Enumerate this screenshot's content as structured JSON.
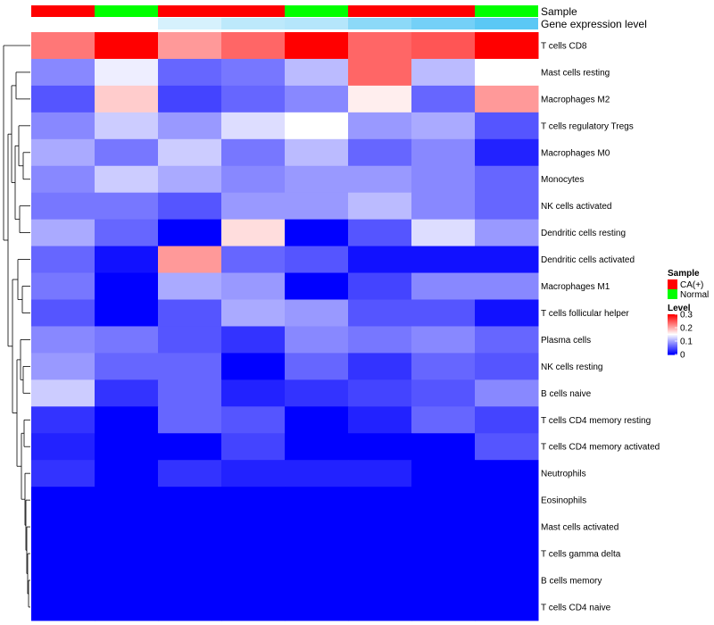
{
  "chart_data": {
    "type": "heatmap",
    "annotation_labels": [
      "Sample",
      "Gene expression level"
    ],
    "sample_annotation": [
      "CA(+)",
      "Normal",
      "CA(+)",
      "CA(+)",
      "Normal",
      "CA(+)",
      "CA(+)",
      "Normal"
    ],
    "gene_expression_annotation": [
      0.0,
      0.0,
      0.25,
      0.4,
      0.45,
      0.7,
      0.85,
      1.0
    ],
    "rows": [
      "T cells CD8",
      "Mast cells resting",
      "Macrophages M2",
      "T cells regulatory  Tregs",
      "Macrophages M0",
      "Monocytes",
      "NK cells activated",
      "Dendritic cells resting",
      "Dendritic cells activated",
      "Macrophages M1",
      "T cells follicular helper",
      "Plasma cells",
      "NK cells resting",
      "B cells naive",
      "T cells CD4 memory resting",
      "T cells CD4 memory activated",
      "Neutrophils",
      "Eosinophils",
      "Mast cells activated",
      "T cells gamma delta",
      "B cells memory",
      "T cells CD4 naive"
    ],
    "values": [
      [
        0.23,
        0.3,
        0.21,
        0.24,
        0.3,
        0.24,
        0.25,
        0.3
      ],
      [
        0.08,
        0.14,
        0.06,
        0.07,
        0.11,
        0.24,
        0.11,
        0.15
      ],
      [
        0.05,
        0.18,
        0.04,
        0.06,
        0.08,
        0.16,
        0.06,
        0.21
      ],
      [
        0.08,
        0.12,
        0.09,
        0.13,
        0.15,
        0.09,
        0.1,
        0.05
      ],
      [
        0.1,
        0.07,
        0.12,
        0.07,
        0.11,
        0.06,
        0.08,
        0.02
      ],
      [
        0.08,
        0.12,
        0.1,
        0.08,
        0.09,
        0.09,
        0.08,
        0.06
      ],
      [
        0.07,
        0.07,
        0.05,
        0.09,
        0.09,
        0.11,
        0.08,
        0.06
      ],
      [
        0.1,
        0.06,
        0.0,
        0.17,
        0.0,
        0.05,
        0.13,
        0.09
      ],
      [
        0.06,
        0.01,
        0.21,
        0.06,
        0.05,
        0.01,
        0.01,
        0.01
      ],
      [
        0.07,
        0.0,
        0.1,
        0.09,
        0.0,
        0.04,
        0.08,
        0.08
      ],
      [
        0.05,
        0.0,
        0.05,
        0.1,
        0.09,
        0.05,
        0.05,
        0.01
      ],
      [
        0.08,
        0.07,
        0.05,
        0.03,
        0.08,
        0.07,
        0.08,
        0.06
      ],
      [
        0.09,
        0.06,
        0.06,
        0.0,
        0.06,
        0.03,
        0.06,
        0.05
      ],
      [
        0.12,
        0.03,
        0.06,
        0.02,
        0.03,
        0.04,
        0.05,
        0.08
      ],
      [
        0.03,
        0.0,
        0.06,
        0.05,
        0.0,
        0.02,
        0.06,
        0.04
      ],
      [
        0.02,
        0.0,
        0.0,
        0.04,
        0.0,
        0.0,
        0.0,
        0.05
      ],
      [
        0.03,
        0.0,
        0.03,
        0.02,
        0.02,
        0.02,
        0.0,
        0.0
      ],
      [
        0.0,
        0.0,
        0.0,
        0.0,
        0.0,
        0.0,
        0.0,
        0.0
      ],
      [
        0.0,
        0.0,
        0.0,
        0.0,
        0.0,
        0.0,
        0.0,
        0.0
      ],
      [
        0.0,
        0.0,
        0.0,
        0.0,
        0.0,
        0.0,
        0.0,
        0.0
      ],
      [
        0.0,
        0.0,
        0.0,
        0.0,
        0.0,
        0.0,
        0.0,
        0.0
      ],
      [
        0.0,
        0.0,
        0.0,
        0.0,
        0.0,
        0.0,
        0.0,
        0.0
      ]
    ],
    "color_scale": {
      "min": 0,
      "mid": 0.15,
      "max": 0.3,
      "low_color": "#0000ff",
      "mid_color": "#ffffff",
      "high_color": "#ff0000"
    },
    "legend": {
      "sample_title": "Sample",
      "sample_items": [
        {
          "label": "CA(+)",
          "color": "#ff0000"
        },
        {
          "label": "Normal",
          "color": "#00ff00"
        }
      ],
      "level_title": "Level",
      "level_ticks": [
        "0.3",
        "0.2",
        "0.1",
        "0"
      ],
      "level_tick_values": [
        0.3,
        0.2,
        0.1,
        0
      ]
    },
    "annotation_colors": {
      "gene_expression_low": "#ffffff",
      "gene_expression_high": "#5bc8f5"
    },
    "dendrogram": "row clustering tree on left"
  }
}
